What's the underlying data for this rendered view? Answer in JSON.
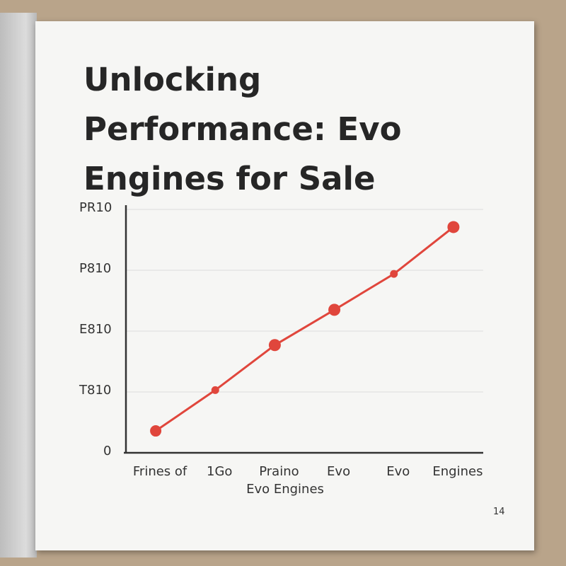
{
  "chart_data": {
    "type": "line",
    "title": "Unlocking Performance: Evo Engines for Sale",
    "x_label": "Evo Engines",
    "categories": [
      "Frines of",
      "1Go",
      "Praino",
      "Evo",
      "Evo",
      "Engines"
    ],
    "values": [
      0.36,
      1.03,
      1.77,
      2.35,
      2.94,
      3.71
    ],
    "color": "#e0463c",
    "ylim": [
      0,
      4
    ],
    "yticks": [
      0,
      {
        "value": 1,
        "label": "T810"
      },
      {
        "value": 2,
        "label": "E810"
      },
      {
        "value": 3,
        "label": "P810"
      },
      {
        "value": 4,
        "label": "PR10"
      }
    ],
    "grid": true
  },
  "page_number": "14"
}
